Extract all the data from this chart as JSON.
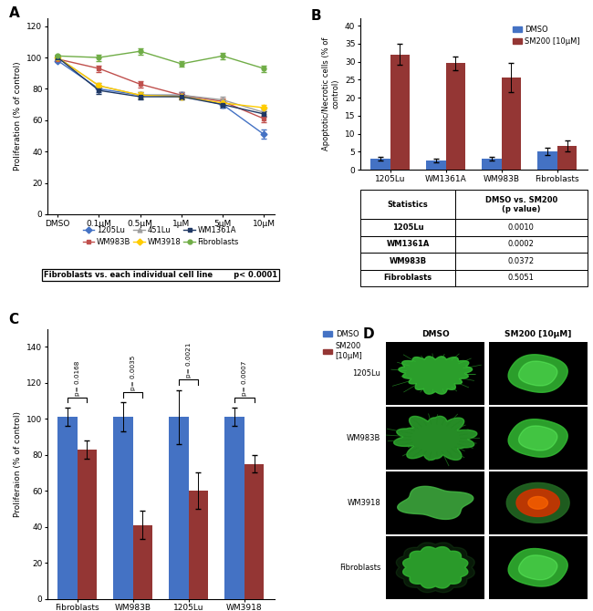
{
  "panel_A": {
    "x_labels": [
      "DMSO",
      "0.1μM",
      "0.5μM",
      "1μM",
      "5μM",
      "10μM"
    ],
    "lines": {
      "1205Lu": {
        "y": [
          98,
          80,
          76,
          76,
          70,
          51
        ],
        "err": [
          1,
          2,
          2,
          2,
          2,
          3
        ],
        "color": "#4472C4",
        "marker": "D"
      },
      "WM983B": {
        "y": [
          99,
          93,
          83,
          76,
          72,
          61
        ],
        "err": [
          1,
          2,
          2,
          2,
          2,
          2
        ],
        "color": "#C0504D",
        "marker": "s"
      },
      "451Lu": {
        "y": [
          100,
          82,
          76,
          76,
          73,
          65
        ],
        "err": [
          1,
          2,
          2,
          2,
          2,
          2
        ],
        "color": "#9E9E9E",
        "marker": "^"
      },
      "WM3918": {
        "y": [
          100,
          82,
          76,
          75,
          71,
          68
        ],
        "err": [
          1,
          2,
          2,
          2,
          2,
          2
        ],
        "color": "#FFCC00",
        "marker": "D"
      },
      "WM1361A": {
        "y": [
          100,
          79,
          75,
          75,
          70,
          64
        ],
        "err": [
          1,
          2,
          2,
          2,
          2,
          2
        ],
        "color": "#1F3864",
        "marker": "s"
      },
      "Fibroblasts": {
        "y": [
          101,
          100,
          104,
          96,
          101,
          93
        ],
        "err": [
          1,
          2,
          2,
          2,
          2,
          2
        ],
        "color": "#70AD47",
        "marker": "o"
      }
    },
    "ylabel": "Proliferation (% of control)",
    "ylim": [
      0,
      125
    ],
    "yticks": [
      0,
      20,
      40,
      60,
      80,
      100,
      120
    ],
    "box_text": "Fibroblasts vs. each individual cell line        p< 0.0001"
  },
  "panel_B": {
    "categories": [
      "1205Lu",
      "WM1361A",
      "WM983B",
      "Fibroblasts"
    ],
    "dmso": {
      "y": [
        3.0,
        2.5,
        3.0,
        5.0
      ],
      "err": [
        0.5,
        0.5,
        0.5,
        1.0
      ]
    },
    "sm200": {
      "y": [
        32.0,
        29.5,
        25.5,
        6.5
      ],
      "err": [
        3.0,
        2.0,
        4.0,
        1.5
      ]
    },
    "dmso_color": "#4472C4",
    "sm200_color": "#943634",
    "ylabel": "Apoptotic/Necrotic cells (% of\ncontrol)",
    "ylim": [
      0,
      42
    ],
    "yticks": [
      0,
      5,
      10,
      15,
      20,
      25,
      30,
      35,
      40
    ],
    "table": {
      "header": [
        "Statistics",
        "DMSO vs. SM200\n(p value)"
      ],
      "rows": [
        [
          "1205Lu",
          "0.0010"
        ],
        [
          "WM1361A",
          "0.0002"
        ],
        [
          "WM983B",
          "0.0372"
        ],
        [
          "Fibroblasts",
          "0.5051"
        ]
      ]
    }
  },
  "panel_C": {
    "categories": [
      "Fibroblasts",
      "WM983B",
      "1205Lu",
      "WM3918"
    ],
    "dmso": {
      "y": [
        101,
        101,
        101,
        101
      ],
      "err": [
        5,
        8,
        15,
        5
      ]
    },
    "sm200": {
      "y": [
        83,
        41,
        60,
        75
      ],
      "err": [
        5,
        8,
        10,
        5
      ]
    },
    "dmso_color": "#4472C4",
    "sm200_color": "#943634",
    "ylabel": "Proliferaion (% of control)",
    "ylim": [
      0,
      150
    ],
    "yticks": [
      0,
      20,
      40,
      60,
      80,
      100,
      120,
      140
    ],
    "pvalues": [
      "p= 0.0168",
      "p= 0.0035",
      "p= 0.0021",
      "p= 0.0007"
    ]
  },
  "panel_D": {
    "rows": [
      "1205Lu",
      "WM983B",
      "WM3918",
      "Fibroblasts"
    ],
    "cols": [
      "DMSO",
      "SM200 [10μM]"
    ]
  }
}
